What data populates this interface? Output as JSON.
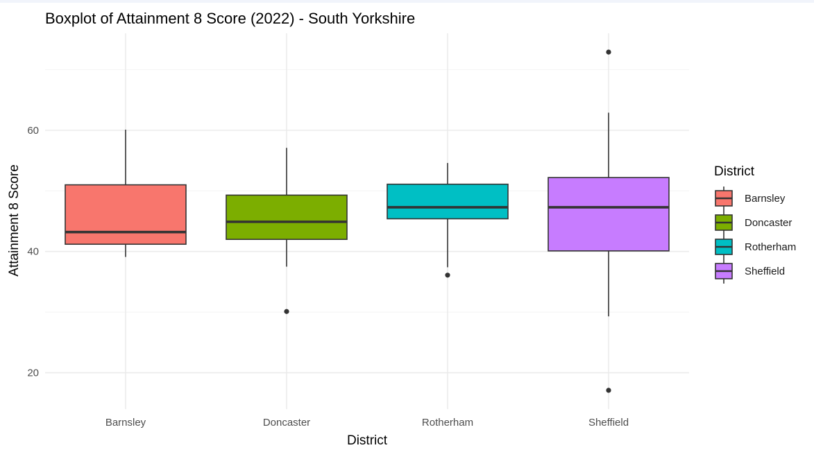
{
  "chart_data": {
    "type": "boxplot",
    "title": "Boxplot of Attainment 8 Score (2022) - South Yorkshire",
    "xlabel": "District",
    "ylabel": "Attainment 8 Score",
    "ylim": [
      14.0,
      76.0
    ],
    "yticks": [
      20,
      40,
      60
    ],
    "grid": true,
    "legend": {
      "title": "District",
      "position": "right"
    },
    "categories": [
      "Barnsley",
      "Doncaster",
      "Rotherham",
      "Sheffield"
    ],
    "colors": [
      "#F8766D",
      "#7CAE00",
      "#00BFC4",
      "#C77CFF"
    ],
    "boxes": [
      {
        "name": "Barnsley",
        "whisker_low": 39.1,
        "q1": 41.2,
        "median": 43.2,
        "q3": 51.0,
        "whisker_high": 60.1,
        "outliers": []
      },
      {
        "name": "Doncaster",
        "whisker_low": 37.5,
        "q1": 42.0,
        "median": 44.9,
        "q3": 49.3,
        "whisker_high": 57.1,
        "outliers": [
          30.1
        ]
      },
      {
        "name": "Rotherham",
        "whisker_low": 37.4,
        "q1": 45.4,
        "median": 47.3,
        "q3": 51.1,
        "whisker_high": 54.6,
        "outliers": [
          36.1
        ]
      },
      {
        "name": "Sheffield",
        "whisker_low": 29.3,
        "q1": 40.1,
        "median": 47.3,
        "q3": 52.2,
        "whisker_high": 62.9,
        "outliers": [
          72.9,
          17.1
        ]
      }
    ]
  }
}
